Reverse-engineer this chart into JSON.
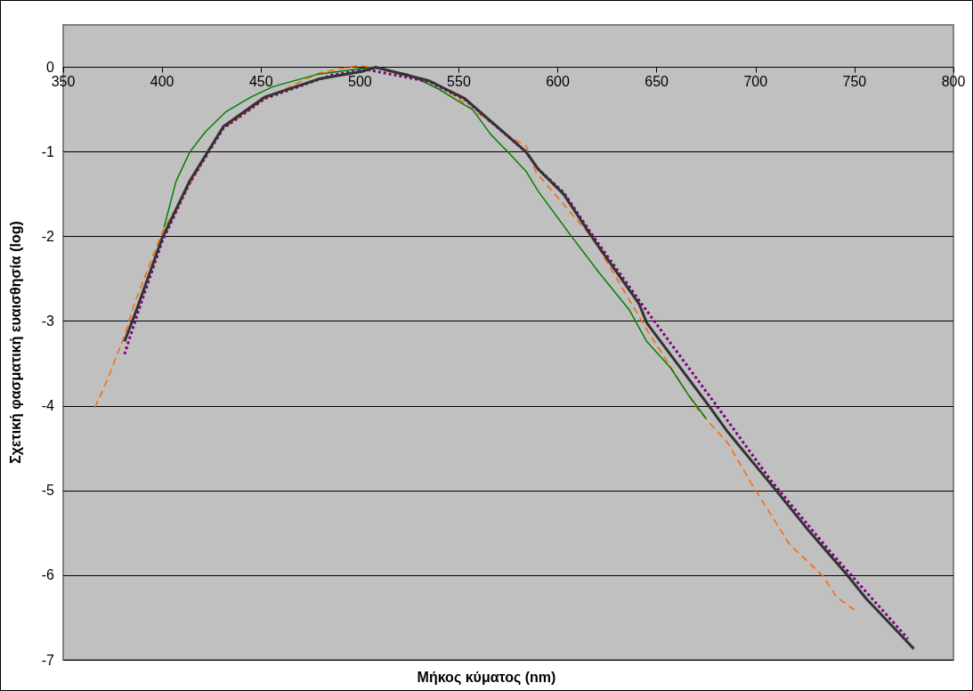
{
  "chart_data": {
    "type": "line",
    "xlabel": "Μήκος κύματος (nm)",
    "ylabel": "Σχετική φασματική ευαισθησία (log)",
    "xlim": [
      350,
      800
    ],
    "xticks": [
      350,
      400,
      450,
      500,
      550,
      600,
      650,
      700,
      750,
      800
    ],
    "ylim": [
      -7,
      0.5
    ],
    "yticks": [
      -7,
      -6,
      -5,
      -4,
      -3,
      -2,
      -1,
      0
    ],
    "grid": "y",
    "marker": "none",
    "series": [
      {
        "color": "#ff6600",
        "line_style": "dashed",
        "x": [
          366,
          372,
          381,
          386,
          400,
          414,
          429,
          452,
          479,
          494,
          500,
          508,
          539,
          577,
          584,
          589,
          618,
          639,
          645,
          671,
          686,
          699,
          717,
          734,
          741,
          750
        ],
        "values": [
          -4.02,
          -3.71,
          -3.17,
          -2.79,
          -1.95,
          -1.39,
          -0.76,
          -0.37,
          -0.07,
          0,
          0.02,
          -0.01,
          -0.19,
          -0.84,
          -0.93,
          -1.24,
          -2.03,
          -2.86,
          -3.1,
          -4.05,
          -4.44,
          -4.96,
          -5.63,
          -6.01,
          -6.26,
          -6.41
        ]
      },
      {
        "color": "#008000",
        "line_style": "solid",
        "x": [
          401,
          407,
          414,
          422,
          432,
          445,
          456,
          479,
          506,
          524,
          540,
          551,
          557,
          566,
          576,
          584,
          590,
          607,
          621,
          636,
          645,
          657,
          666,
          675
        ],
        "values": [
          -1.89,
          -1.35,
          -1.0,
          -0.76,
          -0.53,
          -0.35,
          -0.23,
          -0.08,
          0,
          -0.08,
          -0.26,
          -0.42,
          -0.5,
          -0.79,
          -1.03,
          -1.23,
          -1.46,
          -2.0,
          -2.43,
          -2.86,
          -3.24,
          -3.55,
          -3.87,
          -4.15
        ]
      },
      {
        "color": "#800080",
        "line_style": "dotted",
        "x": [
          381,
          387,
          400,
          414,
          431,
          452,
          486,
          504,
          535,
          553,
          584,
          590,
          603,
          618,
          641,
          652,
          681,
          708,
          738,
          777
        ],
        "values": [
          -3.39,
          -2.95,
          -2.06,
          -1.36,
          -0.72,
          -0.37,
          -0.09,
          -0.03,
          -0.17,
          -0.38,
          -1.0,
          -1.2,
          -1.48,
          -2.0,
          -2.75,
          -3.1,
          -4.02,
          -4.89,
          -5.73,
          -6.75
        ]
      },
      {
        "color": "#333333",
        "line_style": "solid",
        "x": [
          381,
          387,
          400,
          414,
          431,
          452,
          479,
          501,
          508,
          535,
          553,
          584,
          590,
          603,
          618,
          641,
          645,
          677,
          686,
          710,
          726,
          746,
          756,
          780
        ],
        "values": [
          -3.24,
          -2.87,
          -2.02,
          -1.34,
          -0.7,
          -0.35,
          -0.14,
          -0.05,
          0,
          -0.16,
          -0.37,
          -1.0,
          -1.2,
          -1.5,
          -2.03,
          -2.79,
          -3.02,
          -4.02,
          -4.31,
          -4.99,
          -5.45,
          -5.99,
          -6.28,
          -6.87
        ]
      }
    ]
  }
}
